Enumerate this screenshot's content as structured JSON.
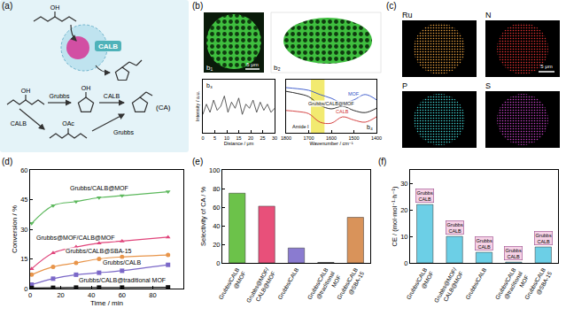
{
  "panels": {
    "letters": [
      "(a)",
      "(b)",
      "(c)",
      "(d)",
      "(e)",
      "(f)"
    ],
    "a": {
      "enzyme": "CALB",
      "substrate_group": "OH",
      "steps": [
        "Grubbs",
        "CALB"
      ],
      "product": "(CA)",
      "alt_steps": [
        "CALB",
        "Grubbs"
      ],
      "ester_group": "OAc"
    },
    "b": {
      "sublabels": [
        "b₁",
        "b₂",
        "b₃",
        "b₄"
      ],
      "scale": "5 μm"
    },
    "c": {
      "elements": [
        {
          "symbol": "Ru",
          "color": "#e8a040"
        },
        {
          "symbol": "N",
          "color": "#e03030"
        },
        {
          "symbol": "P",
          "color": "#40d0d0"
        },
        {
          "symbol": "S",
          "color": "#c040c0"
        }
      ],
      "scale": "5 μm"
    }
  },
  "chart_data": [
    {
      "type": "line",
      "x": [
        0,
        1.5,
        3,
        4.5,
        6,
        7.5,
        9,
        10.5,
        12,
        13.5,
        15,
        16.5,
        18,
        19.5,
        21,
        22.5,
        24,
        25.5,
        27,
        28.5,
        30
      ],
      "values": [
        0.45,
        0.7,
        0.5,
        0.8,
        0.55,
        0.65,
        0.9,
        0.5,
        0.75,
        0.6,
        0.85,
        0.45,
        0.7,
        0.6,
        0.8,
        0.5,
        0.75,
        0.55,
        0.7,
        0.5,
        0.6
      ],
      "color": "#333333",
      "xlim": [
        0,
        30
      ],
      "ylim": [
        0,
        1.3
      ],
      "xticks": [
        0,
        5,
        10,
        15,
        20,
        25,
        30
      ],
      "xlabel": "Distance / μm",
      "ylabel": "Intensity / a.u.",
      "tick_labels": "x",
      "line_style": "solid"
    },
    {
      "type": "line",
      "x": [
        1800,
        1750,
        1700,
        1650,
        1600,
        1550,
        1500,
        1450,
        1400
      ],
      "series": [
        {
          "name": "MOF",
          "color": "#3050c8",
          "values": [
            0.85,
            0.83,
            0.8,
            0.72,
            0.65,
            0.56,
            0.62,
            0.72,
            0.62
          ]
        },
        {
          "name": "Grubbs/CALB@MOF",
          "color": "#111111",
          "values": [
            0.78,
            0.74,
            0.68,
            0.52,
            0.45,
            0.5,
            0.42,
            0.38,
            0.46
          ]
        },
        {
          "name": "CALB",
          "color": "#d03030",
          "values": [
            0.42,
            0.4,
            0.36,
            0.2,
            0.18,
            0.3,
            0.24,
            0.2,
            0.3
          ]
        }
      ],
      "xlim": [
        1800,
        1400
      ],
      "ylim": [
        0,
        1
      ],
      "xticks": [
        1800,
        1700,
        1600,
        1500,
        1400
      ],
      "xlabel": "Wavenumber / cm⁻¹",
      "tick_labels": "x",
      "line_style": "solid",
      "highlight": {
        "label": "Amide I",
        "x": [
          1690,
          1630
        ],
        "color": "#f2ea70"
      }
    },
    {
      "type": "line",
      "x": [
        1,
        15,
        30,
        45,
        60,
        90
      ],
      "series": [
        {
          "name": "Grubbs/CALB@MOF",
          "color": "#5cb85c",
          "marker": "triangle-down",
          "values": [
            33,
            42,
            44,
            46,
            47,
            49
          ]
        },
        {
          "name": "Grubbs@MOF/CALB@MOF",
          "color": "#e0457b",
          "marker": "triangle-up",
          "values": [
            10,
            18,
            21,
            23,
            24,
            26
          ]
        },
        {
          "name": "Grubbs/CALB@SBA-15",
          "color": "#e8954a",
          "marker": "circle",
          "values": [
            7,
            11,
            13,
            15,
            16,
            17
          ]
        },
        {
          "name": "Grubbs/CALB",
          "color": "#7b68c8",
          "marker": "square",
          "values": [
            2,
            5,
            7,
            8,
            9,
            12
          ]
        },
        {
          "name": "Grubbs/CALB@traditional MOF",
          "color": "#111111",
          "marker": "square",
          "values": [
            0.3,
            0.4,
            0.5,
            0.5,
            0.5,
            0.6
          ]
        }
      ],
      "xlim": [
        0,
        100
      ],
      "ylim": [
        0,
        60
      ],
      "xticks": [
        0,
        20,
        40,
        60,
        80,
        100
      ],
      "yticks": [
        0,
        15,
        30,
        45,
        60
      ],
      "xlabel": "Time / min",
      "ylabel": "Conversion / %",
      "line_style": "solid"
    },
    {
      "type": "bar",
      "categories": [
        "Grubbs/CALB@MOF",
        "Grubbs@MOF/CALB@MOF",
        "Grubbs/CALB",
        "Grubbs/CALB@traditional MOF",
        "Grubbs/CALB@SBA-15"
      ],
      "values": [
        75,
        61,
        16,
        0.5,
        49
      ],
      "colors": [
        "#6cc24a",
        "#e8507a",
        "#8a7bd0",
        "#222222",
        "#d9935a"
      ],
      "ylim": [
        0,
        100
      ],
      "yticks": [
        0,
        20,
        40,
        60,
        80,
        100
      ],
      "ylabel": "Selectivity of CA / %"
    },
    {
      "type": "bar",
      "categories": [
        "Grubbs/CALB@MOF",
        "Grubbs@MOF/CALB@MOF",
        "Grubbs/CALB",
        "Grubbs/CALB@traditional MOF",
        "Grubbs/CALB@SBA-15"
      ],
      "values": [
        22,
        10,
        4,
        0.3,
        6
      ],
      "color": "#6ccfe6",
      "ylim": [
        0,
        35
      ],
      "yticks": [
        0,
        10,
        20,
        30
      ],
      "ylabel": "CE / (mol·mol⁻¹·h⁻¹)",
      "annotations": [
        [
          "Grubbs",
          "CALB"
        ],
        [
          "Grubbs",
          "CALB"
        ],
        [
          "Grubbs",
          "CALB"
        ],
        [
          "Grubbs",
          "CALB"
        ],
        [
          "Grubbs",
          "CALB"
        ]
      ]
    }
  ]
}
